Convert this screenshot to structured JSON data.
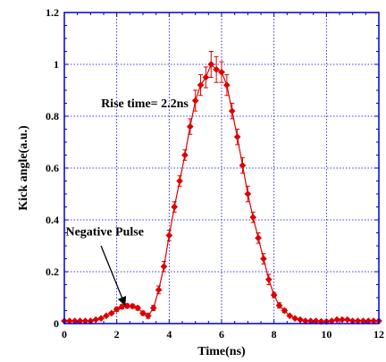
{
  "chart_data": {
    "type": "line",
    "xlabel": "Time(ns)",
    "ylabel": "Kick angle(a.u.)",
    "xlim": [
      0,
      12
    ],
    "ylim": [
      0,
      1.2
    ],
    "xticks": [
      0,
      2,
      4,
      6,
      8,
      10,
      12
    ],
    "yticks": [
      0,
      0.2,
      0.4,
      0.6,
      0.8,
      1,
      1.2
    ],
    "xtick_labels": [
      "0",
      "2",
      "4",
      "6",
      "8",
      "10",
      "12"
    ],
    "ytick_labels": [
      "0",
      "0.2",
      "0.4",
      "0.6",
      "0.8",
      "1",
      "1.2"
    ],
    "grid": true,
    "series": [
      {
        "color": "#dd0000",
        "marker": "diamond",
        "error_bars": true,
        "x": [
          0,
          0.2,
          0.4,
          0.6,
          0.8,
          1.0,
          1.2,
          1.4,
          1.6,
          1.8,
          2.0,
          2.2,
          2.4,
          2.6,
          2.8,
          3.0,
          3.2,
          3.4,
          3.6,
          3.8,
          4.0,
          4.2,
          4.4,
          4.6,
          4.8,
          5.0,
          5.2,
          5.4,
          5.6,
          5.8,
          6.0,
          6.2,
          6.4,
          6.6,
          6.8,
          7.0,
          7.2,
          7.4,
          7.6,
          7.8,
          8.0,
          8.2,
          8.4,
          8.6,
          8.8,
          9.0,
          9.2,
          9.4,
          9.6,
          9.8,
          10.0,
          10.2,
          10.4,
          10.6,
          10.8,
          11.0,
          11.2,
          11.4,
          11.6,
          11.8,
          12.0
        ],
        "y": [
          0.01,
          0.01,
          0.01,
          0.01,
          0.01,
          0.01,
          0.015,
          0.02,
          0.03,
          0.04,
          0.055,
          0.065,
          0.068,
          0.067,
          0.06,
          0.04,
          0.03,
          0.06,
          0.13,
          0.22,
          0.34,
          0.45,
          0.55,
          0.65,
          0.76,
          0.86,
          0.92,
          0.95,
          1.0,
          0.98,
          0.97,
          0.92,
          0.82,
          0.72,
          0.61,
          0.5,
          0.41,
          0.33,
          0.25,
          0.17,
          0.11,
          0.07,
          0.05,
          0.03,
          0.02,
          0.015,
          0.01,
          0.01,
          0.01,
          0.008,
          0.008,
          0.01,
          0.015,
          0.015,
          0.015,
          0.01,
          0.01,
          0.01,
          0.01,
          0.01,
          0.01
        ],
        "err": [
          0.005,
          0.005,
          0.005,
          0.005,
          0.005,
          0.005,
          0.005,
          0.005,
          0.005,
          0.005,
          0.008,
          0.008,
          0.008,
          0.008,
          0.008,
          0.008,
          0.01,
          0.01,
          0.015,
          0.02,
          0.02,
          0.02,
          0.02,
          0.02,
          0.03,
          0.04,
          0.04,
          0.04,
          0.05,
          0.05,
          0.04,
          0.04,
          0.03,
          0.03,
          0.03,
          0.03,
          0.02,
          0.02,
          0.02,
          0.02,
          0.01,
          0.01,
          0.008,
          0.005,
          0.005,
          0.005,
          0.005,
          0.005,
          0.005,
          0.005,
          0.005,
          0.005,
          0.005,
          0.005,
          0.005,
          0.005,
          0.005,
          0.005,
          0.005,
          0.005,
          0.005
        ]
      }
    ],
    "annotations": [
      {
        "text": "Rise time= 2.2ns",
        "x": 1.4,
        "y": 0.835
      },
      {
        "text": "Negative Pulse",
        "x": 0.05,
        "y": 0.34,
        "arrow_to": [
          2.3,
          0.075
        ],
        "arrow_from": [
          1.4,
          0.3
        ]
      }
    ]
  }
}
